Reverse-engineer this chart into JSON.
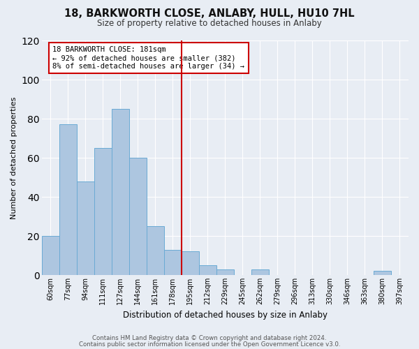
{
  "title": "18, BARKWORTH CLOSE, ANLABY, HULL, HU10 7HL",
  "subtitle": "Size of property relative to detached houses in Anlaby",
  "xlabel": "Distribution of detached houses by size in Anlaby",
  "ylabel": "Number of detached properties",
  "bar_labels": [
    "60sqm",
    "77sqm",
    "94sqm",
    "111sqm",
    "127sqm",
    "144sqm",
    "161sqm",
    "178sqm",
    "195sqm",
    "212sqm",
    "229sqm",
    "245sqm",
    "262sqm",
    "279sqm",
    "296sqm",
    "313sqm",
    "330sqm",
    "346sqm",
    "363sqm",
    "380sqm",
    "397sqm"
  ],
  "bar_heights": [
    20,
    77,
    48,
    65,
    85,
    60,
    25,
    13,
    12,
    5,
    3,
    0,
    3,
    0,
    0,
    0,
    0,
    0,
    0,
    2,
    0
  ],
  "bar_color": "#adc6e0",
  "bar_edge_color": "#6aaad4",
  "bg_color": "#e8edf4",
  "grid_color": "#ffffff",
  "vline_x_index": 7.5,
  "vline_color": "#cc0000",
  "annotation_line1": "18 BARKWORTH CLOSE: 181sqm",
  "annotation_line2": "← 92% of detached houses are smaller (382)",
  "annotation_line3": "8% of semi-detached houses are larger (34) →",
  "annotation_border_color": "#cc0000",
  "ylim": [
    0,
    120
  ],
  "yticks": [
    0,
    20,
    40,
    60,
    80,
    100,
    120
  ],
  "footer1": "Contains HM Land Registry data © Crown copyright and database right 2024.",
  "footer2": "Contains public sector information licensed under the Open Government Licence v3.0."
}
